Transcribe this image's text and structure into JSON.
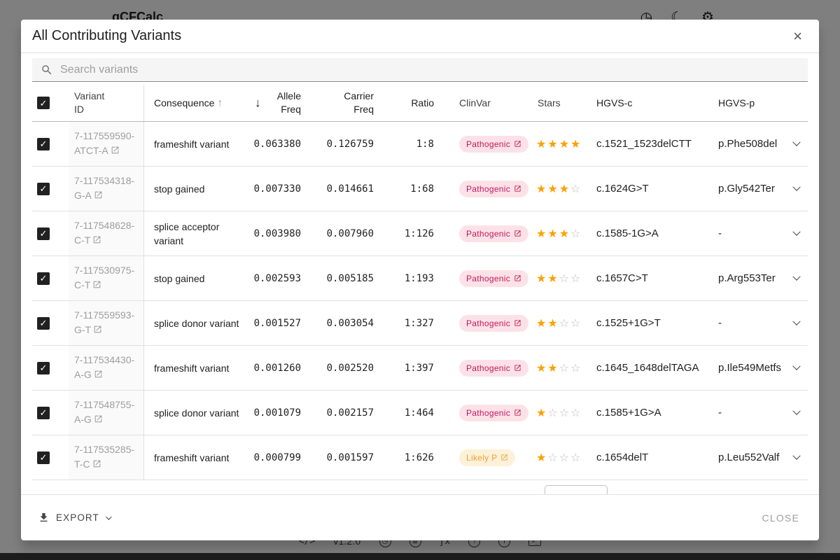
{
  "backdrop": {
    "app_title": "gCFCalc",
    "version": "v1.2.0"
  },
  "icons": {
    "checkmark": "✓",
    "close": "×",
    "sort_asc": "↑",
    "sort_desc": "↓",
    "star_filled": "★",
    "star_empty": "☆",
    "clock": "◷",
    "moon": "☾",
    "gear": "⚙",
    "code": "</>",
    "database": "≣",
    "function": "ƒx",
    "help": "?",
    "info": "i",
    "terminal": ">_"
  },
  "colors": {
    "star_filled": "#FFA000",
    "star_empty": "#BDBDBD",
    "pathogenic_bg": "#FCE2E8",
    "pathogenic_text": "#C2185B",
    "likely_pathogenic_bg": "#FDF1D8",
    "likely_pathogenic_text": "#E9A23B",
    "checkbox": "#212121"
  },
  "modal": {
    "title": "All Contributing Variants",
    "search": {
      "placeholder": "Search variants"
    },
    "columns": {
      "variant_id": "Variant ID",
      "consequence": "Consequence",
      "allele_freq": "Allele Freq",
      "carrier_freq": "Carrier Freq",
      "ratio": "Ratio",
      "clinvar": "ClinVar",
      "stars": "Stars",
      "hgvs_c": "HGVS-c",
      "hgvs_p": "HGVS-p"
    },
    "rows": [
      {
        "id": "7-117559590-ATCT-A",
        "consequence": "frameshift variant",
        "allele_freq": "0.063380",
        "carrier_freq": "0.126759",
        "ratio": "1:8",
        "clinvar": "Pathogenic",
        "clinvar_type": "pathogenic",
        "stars": 4,
        "hgvs_c": "c.1521_1523delCTT",
        "hgvs_p": "p.Phe508del"
      },
      {
        "id": "7-117534318-G-A",
        "consequence": "stop gained",
        "allele_freq": "0.007330",
        "carrier_freq": "0.014661",
        "ratio": "1:68",
        "clinvar": "Pathogenic",
        "clinvar_type": "pathogenic",
        "stars": 3,
        "hgvs_c": "c.1624G>T",
        "hgvs_p": "p.Gly542Ter"
      },
      {
        "id": "7-117548628-C-T",
        "consequence": "splice acceptor variant",
        "allele_freq": "0.003980",
        "carrier_freq": "0.007960",
        "ratio": "1:126",
        "clinvar": "Pathogenic",
        "clinvar_type": "pathogenic",
        "stars": 3,
        "hgvs_c": "c.1585-1G>A",
        "hgvs_p": "-"
      },
      {
        "id": "7-117530975-C-T",
        "consequence": "stop gained",
        "allele_freq": "0.002593",
        "carrier_freq": "0.005185",
        "ratio": "1:193",
        "clinvar": "Pathogenic",
        "clinvar_type": "pathogenic",
        "stars": 2,
        "hgvs_c": "c.1657C>T",
        "hgvs_p": "p.Arg553Ter"
      },
      {
        "id": "7-117559593-G-T",
        "consequence": "splice donor variant",
        "allele_freq": "0.001527",
        "carrier_freq": "0.003054",
        "ratio": "1:327",
        "clinvar": "Pathogenic",
        "clinvar_type": "pathogenic",
        "stars": 2,
        "hgvs_c": "c.1525+1G>T",
        "hgvs_p": "-"
      },
      {
        "id": "7-117534430-A-G",
        "consequence": "frameshift variant",
        "allele_freq": "0.001260",
        "carrier_freq": "0.002520",
        "ratio": "1:397",
        "clinvar": "Pathogenic",
        "clinvar_type": "pathogenic",
        "stars": 2,
        "hgvs_c": "c.1645_1648delTAGA",
        "hgvs_p": "p.Ile549Metfs"
      },
      {
        "id": "7-117548755-A-G",
        "consequence": "splice donor variant",
        "allele_freq": "0.001079",
        "carrier_freq": "0.002157",
        "ratio": "1:464",
        "clinvar": "Pathogenic",
        "clinvar_type": "pathogenic",
        "stars": 1,
        "hgvs_c": "c.1585+1G>A",
        "hgvs_p": "-"
      },
      {
        "id": "7-117535285-T-C",
        "consequence": "frameshift variant",
        "allele_freq": "0.000799",
        "carrier_freq": "0.001597",
        "ratio": "1:626",
        "clinvar": "Likely P",
        "clinvar_type": "likely-pathogenic",
        "stars": 1,
        "hgvs_c": "c.1654delT",
        "hgvs_p": "p.Leu552Valf"
      }
    ],
    "footer": {
      "export_label": "EXPORT",
      "close_label": "CLOSE"
    }
  }
}
